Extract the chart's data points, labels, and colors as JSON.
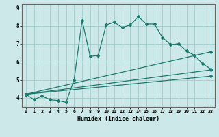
{
  "xlabel": "Humidex (Indice chaleur)",
  "bg_color": "#cce8e8",
  "grid_color": "#a8d0d0",
  "line_color": "#1a7a6e",
  "xlim": [
    -0.5,
    23.5
  ],
  "ylim": [
    3.5,
    9.2
  ],
  "yticks": [
    4,
    5,
    6,
    7,
    8,
    9
  ],
  "xticks": [
    0,
    1,
    2,
    3,
    4,
    5,
    6,
    7,
    8,
    9,
    10,
    11,
    12,
    13,
    14,
    15,
    16,
    17,
    18,
    19,
    20,
    21,
    22,
    23
  ],
  "main_x": [
    0,
    1,
    2,
    3,
    4,
    5,
    6,
    7,
    8,
    9,
    10,
    11,
    12,
    13,
    14,
    15,
    16,
    17,
    18,
    19,
    20,
    21,
    22,
    23
  ],
  "main_y": [
    4.2,
    3.9,
    4.1,
    3.9,
    3.85,
    3.75,
    5.0,
    8.3,
    6.3,
    6.35,
    8.05,
    8.2,
    7.9,
    8.05,
    8.5,
    8.1,
    8.1,
    7.35,
    6.95,
    7.0,
    6.6,
    6.35,
    5.9,
    5.6
  ],
  "line2_x": [
    0,
    23
  ],
  "line2_y": [
    4.2,
    6.55
  ],
  "line3_x": [
    0,
    23
  ],
  "line3_y": [
    4.2,
    5.55
  ],
  "line4_x": [
    0,
    23
  ],
  "line4_y": [
    4.2,
    5.2
  ]
}
